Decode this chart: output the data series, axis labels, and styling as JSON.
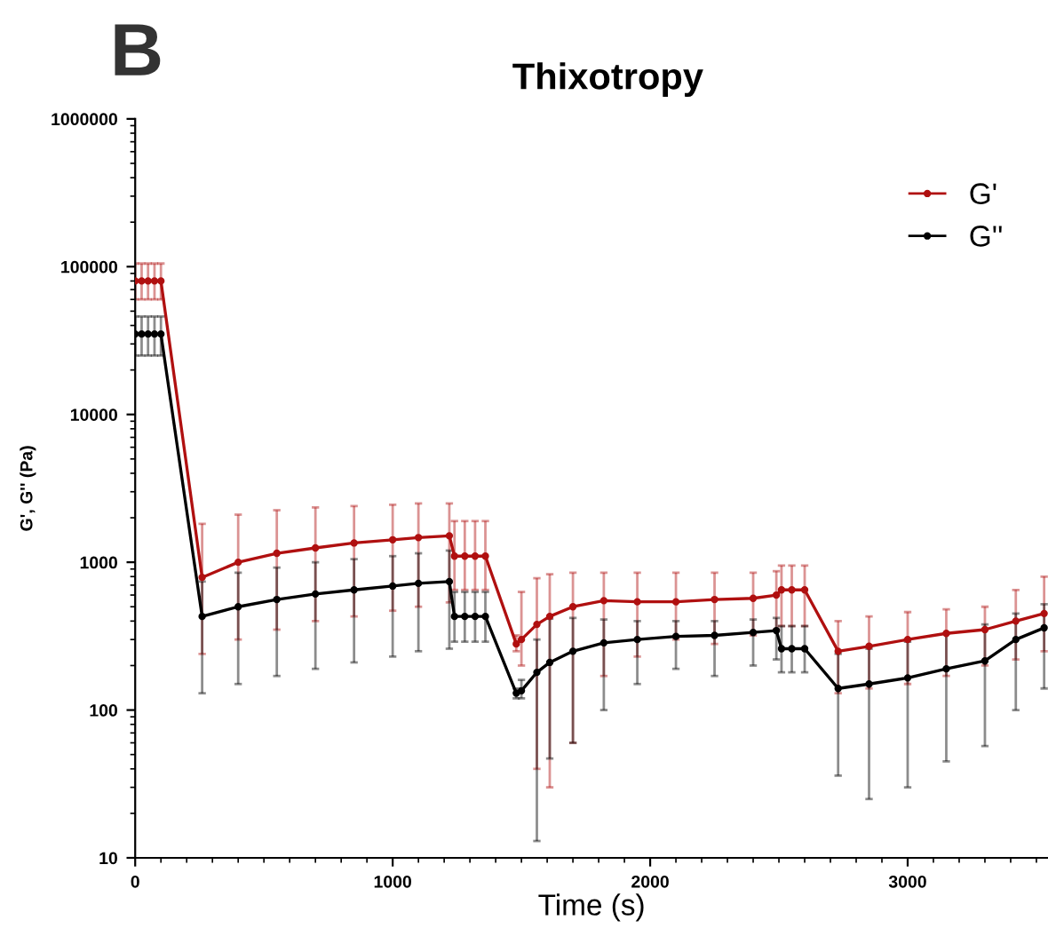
{
  "chart_data": {
    "type": "line",
    "title": "Thixotropy",
    "xlabel": "Time (s)",
    "ylabel": "G', G'' (Pa)",
    "annotations": [
      "B"
    ],
    "log": "y",
    "xlim": [
      0,
      3545
    ],
    "xticks": [
      0,
      1000,
      2000,
      3000
    ],
    "ylim": [
      10,
      1000000
    ],
    "yticks": [
      10,
      100,
      1000,
      10000,
      100000,
      1000000
    ],
    "grid": false,
    "legend": "top right",
    "marker": "circle",
    "line_style": "solid",
    "x": [
      0,
      25,
      50,
      75,
      100,
      260,
      400,
      550,
      700,
      850,
      1000,
      1100,
      1220,
      1240,
      1280,
      1320,
      1360,
      1480,
      1500,
      1560,
      1610,
      1700,
      1820,
      1950,
      2100,
      2250,
      2400,
      2490,
      2510,
      2550,
      2600,
      2730,
      2850,
      3000,
      3150,
      3300,
      3420,
      3530
    ],
    "series": [
      {
        "name": "G'",
        "color": "#b01010",
        "values": [
          80000,
          80000,
          80000,
          80000,
          80000,
          790,
          1000,
          1150,
          1250,
          1350,
          1420,
          1470,
          1510,
          1100,
          1100,
          1100,
          1100,
          280,
          300,
          380,
          430,
          500,
          550,
          540,
          540,
          560,
          570,
          600,
          650,
          650,
          650,
          250,
          270,
          300,
          330,
          350,
          400,
          450
        ],
        "errors": [
          [
            60000,
            105000
          ],
          [
            60000,
            105000
          ],
          [
            60000,
            105000
          ],
          [
            60000,
            105000
          ],
          [
            60000,
            105000
          ],
          [
            240,
            1820
          ],
          [
            300,
            2100
          ],
          [
            350,
            2250
          ],
          [
            400,
            2350
          ],
          [
            430,
            2400
          ],
          [
            470,
            2450
          ],
          [
            500,
            2500
          ],
          [
            535,
            2500
          ],
          [
            650,
            1900
          ],
          [
            650,
            1900
          ],
          [
            650,
            1900
          ],
          [
            650,
            1900
          ],
          [
            250,
            320
          ],
          [
            200,
            630
          ],
          [
            40,
            780
          ],
          [
            30,
            830
          ],
          [
            60,
            850
          ],
          [
            170,
            850
          ],
          [
            230,
            850
          ],
          [
            300,
            850
          ],
          [
            280,
            850
          ],
          [
            320,
            850
          ],
          [
            350,
            870
          ],
          [
            370,
            950
          ],
          [
            370,
            950
          ],
          [
            370,
            950
          ],
          [
            130,
            400
          ],
          [
            140,
            430
          ],
          [
            150,
            460
          ],
          [
            170,
            480
          ],
          [
            200,
            500
          ],
          [
            220,
            650
          ],
          [
            250,
            800
          ]
        ]
      },
      {
        "name": "G''",
        "color": "#000000",
        "values": [
          35000,
          35000,
          35000,
          35000,
          35000,
          430,
          500,
          560,
          610,
          650,
          690,
          720,
          740,
          430,
          430,
          430,
          430,
          130,
          135,
          180,
          210,
          250,
          285,
          300,
          315,
          320,
          335,
          345,
          260,
          260,
          260,
          140,
          150,
          165,
          190,
          215,
          300,
          360
        ],
        "errors": [
          [
            25000,
            46000
          ],
          [
            25000,
            46000
          ],
          [
            25000,
            46000
          ],
          [
            25000,
            46000
          ],
          [
            25000,
            46000
          ],
          [
            130,
            740
          ],
          [
            150,
            850
          ],
          [
            170,
            920
          ],
          [
            190,
            1000
          ],
          [
            210,
            1050
          ],
          [
            230,
            1100
          ],
          [
            250,
            1150
          ],
          [
            260,
            1200
          ],
          [
            290,
            630
          ],
          [
            290,
            630
          ],
          [
            290,
            630
          ],
          [
            290,
            630
          ],
          [
            120,
            140
          ],
          [
            120,
            160
          ],
          [
            13,
            300
          ],
          [
            47,
            415
          ],
          [
            60,
            420
          ],
          [
            100,
            410
          ],
          [
            150,
            400
          ],
          [
            190,
            400
          ],
          [
            170,
            400
          ],
          [
            200,
            410
          ],
          [
            220,
            420
          ],
          [
            180,
            370
          ],
          [
            180,
            370
          ],
          [
            180,
            370
          ],
          [
            36,
            240
          ],
          [
            25,
            260
          ],
          [
            30,
            290
          ],
          [
            45,
            330
          ],
          [
            57,
            380
          ],
          [
            100,
            450
          ],
          [
            140,
            520
          ]
        ]
      }
    ]
  }
}
